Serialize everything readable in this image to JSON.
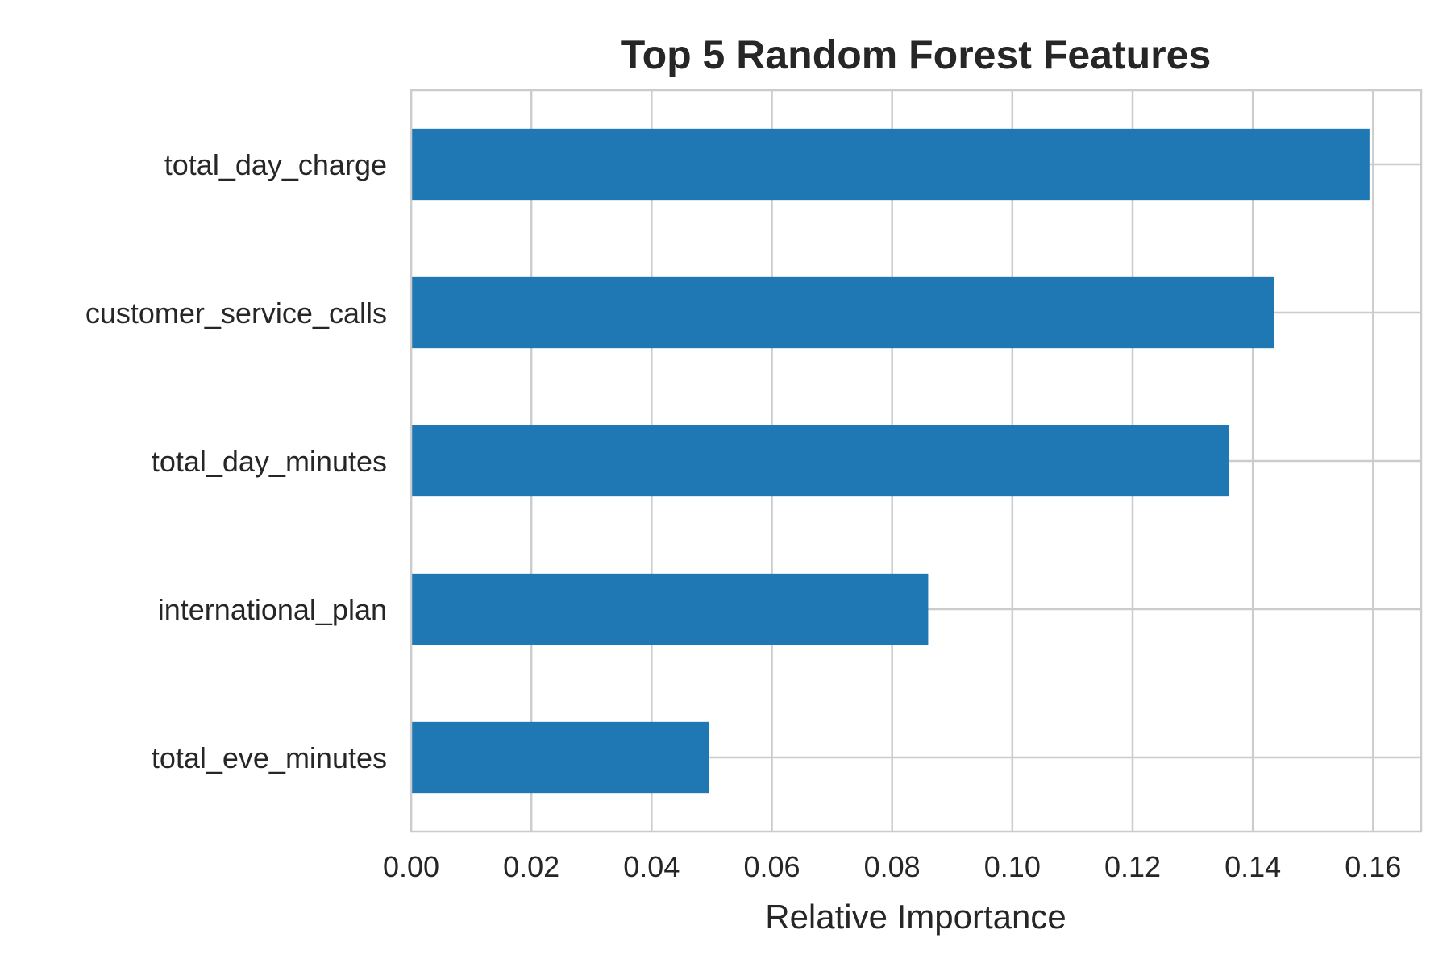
{
  "chart_data": {
    "type": "bar",
    "orientation": "horizontal",
    "title": "Top 5 Random Forest Features",
    "xlabel": "Relative Importance",
    "ylabel": "",
    "categories": [
      "total_day_charge",
      "customer_service_calls",
      "total_day_minutes",
      "international_plan",
      "total_eve_minutes"
    ],
    "values": [
      0.1594,
      0.1435,
      0.136,
      0.086,
      0.0495
    ],
    "xlim": [
      0,
      0.168
    ],
    "xticks": [
      0.0,
      0.02,
      0.04,
      0.06,
      0.08,
      0.1,
      0.12,
      0.14,
      0.16
    ],
    "xtick_labels": [
      "0.00",
      "0.02",
      "0.04",
      "0.06",
      "0.08",
      "0.10",
      "0.12",
      "0.14",
      "0.16"
    ],
    "grid": true,
    "bar_color": "#1f77b4",
    "grid_color": "#cccccc",
    "text_color": "#262626"
  }
}
